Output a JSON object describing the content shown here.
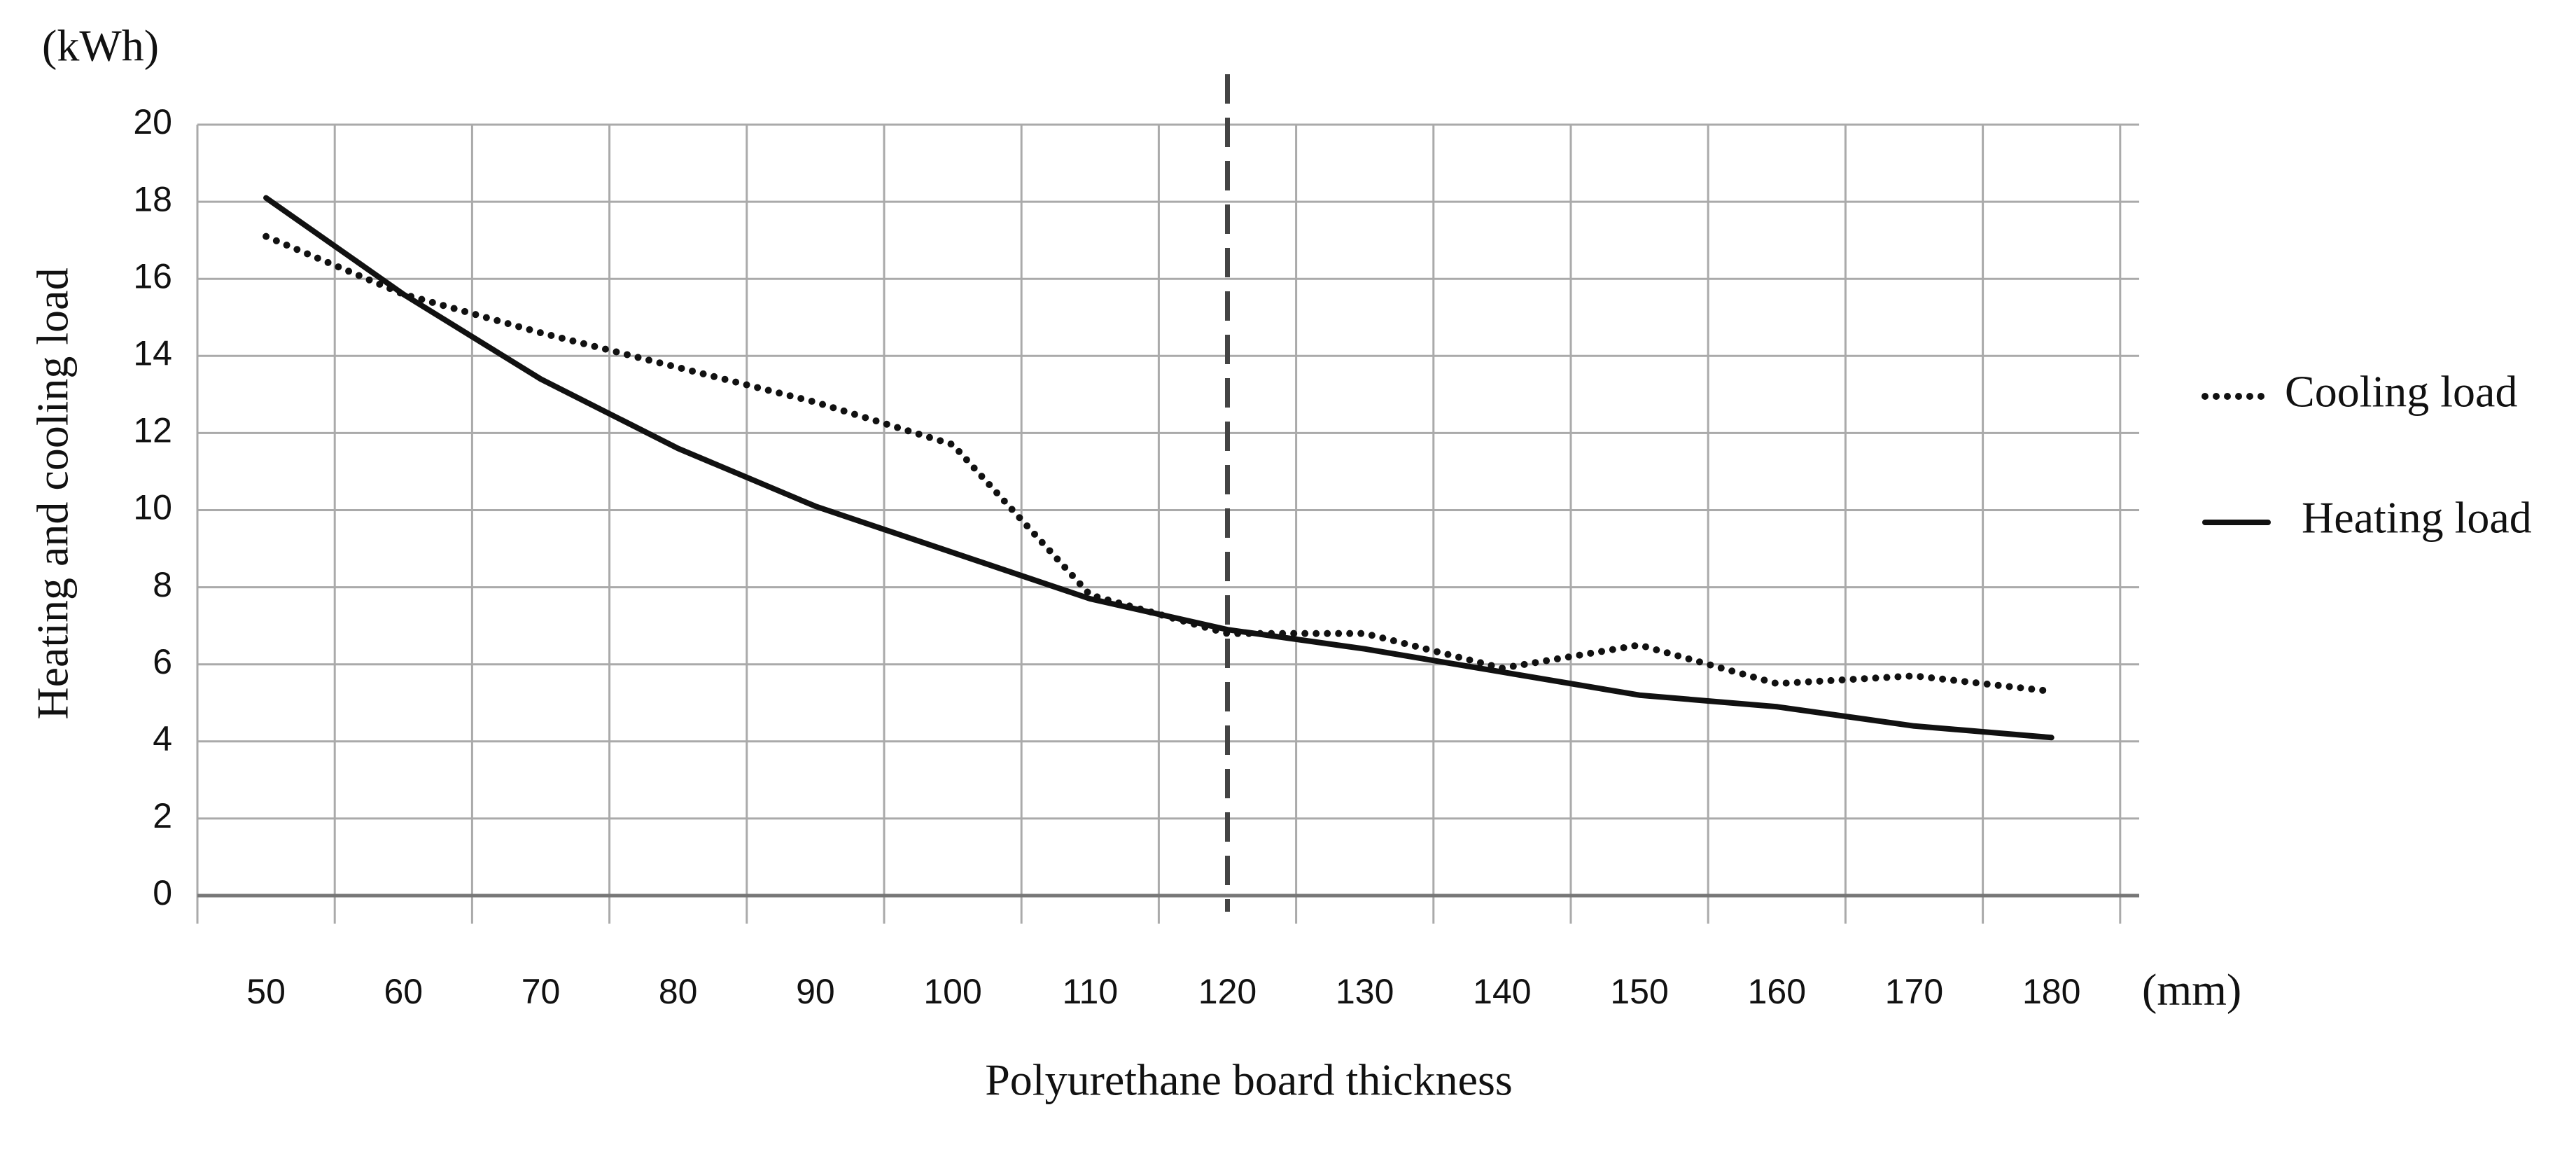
{
  "chart_data": {
    "type": "line",
    "y_unit": "(kWh)",
    "x_unit": "(mm)",
    "x_label": "Polyurethane board thickness",
    "y_label": "Heating and cooling load",
    "categories": [
      "50",
      "60",
      "70",
      "80",
      "90",
      "100",
      "110",
      "120",
      "130",
      "140",
      "150",
      "160",
      "170",
      "180"
    ],
    "series": [
      {
        "name": "Cooling load",
        "color": "#111111",
        "style": "dotted",
        "values": [
          17.1,
          15.6,
          14.6,
          13.7,
          12.8,
          11.7,
          7.8,
          6.8,
          6.8,
          5.9,
          6.5,
          5.5,
          5.7,
          5.3
        ]
      },
      {
        "name": "Heating load",
        "color": "#111111",
        "style": "solid",
        "values": [
          18.1,
          15.6,
          13.4,
          11.6,
          10.1,
          8.9,
          7.7,
          6.9,
          6.4,
          5.8,
          5.2,
          4.9,
          4.4,
          4.1
        ]
      }
    ],
    "vline": "120",
    "ylim": [
      0,
      20
    ],
    "yticks": [
      0,
      2,
      4,
      6,
      8,
      10,
      12,
      14,
      16,
      18,
      20
    ],
    "grid": true,
    "legend": "right"
  }
}
